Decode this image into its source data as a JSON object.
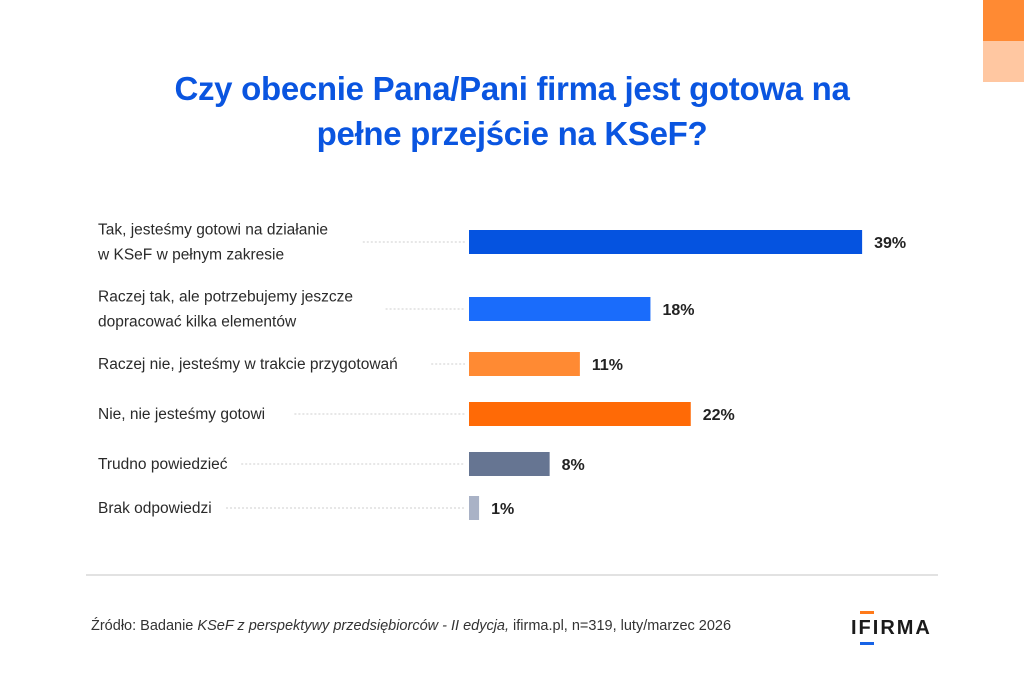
{
  "header": {
    "title_lines": [
      "Czy obecnie Pana/Pani firma jest gotowa na",
      "pełne przejście na KSeF?"
    ]
  },
  "chart_data": {
    "type": "bar",
    "orientation": "horizontal",
    "title": "Czy obecnie Pana/Pani firma jest gotowa na pełne przejście na KSeF?",
    "xlabel": "",
    "ylabel": "",
    "unit": "%",
    "grid": false,
    "legend": "none",
    "xlim": [
      0,
      40
    ],
    "categories": [
      [
        "Tak, jesteśmy gotowi na działanie",
        "w KSeF w pełnym zakresie"
      ],
      [
        "Raczej tak, ale potrzebujemy jeszcze",
        "dopracować kilka elementów"
      ],
      [
        "Raczej nie, jesteśmy w trakcie przygotowań"
      ],
      [
        "Nie, nie jesteśmy gotowi"
      ],
      [
        "Trudno powiedzieć"
      ],
      [
        "Brak odpowiedzi"
      ]
    ],
    "values": [
      39,
      18,
      11,
      22,
      8,
      1
    ],
    "value_labels": [
      "39%",
      "18%",
      "11%",
      "22%",
      "8%",
      "1%"
    ],
    "colors": [
      "#0553e0",
      "#1a6cfb",
      "#ff8a33",
      "#ff6a06",
      "#667592",
      "#a9b2c6"
    ]
  },
  "footer": {
    "source_prefix": "Źródło: Badanie ",
    "source_italic": "KSeF z perspektywy przedsiębiorców - II edycja,",
    "source_suffix": " ifirma.pl, n=319, luty/marzec 2026",
    "logo_text": "IFIRMA"
  },
  "colors": {
    "title": "#0a55e0",
    "accent_orange": "#ff8a33",
    "accent_orange_light": "#ffc7a1"
  }
}
